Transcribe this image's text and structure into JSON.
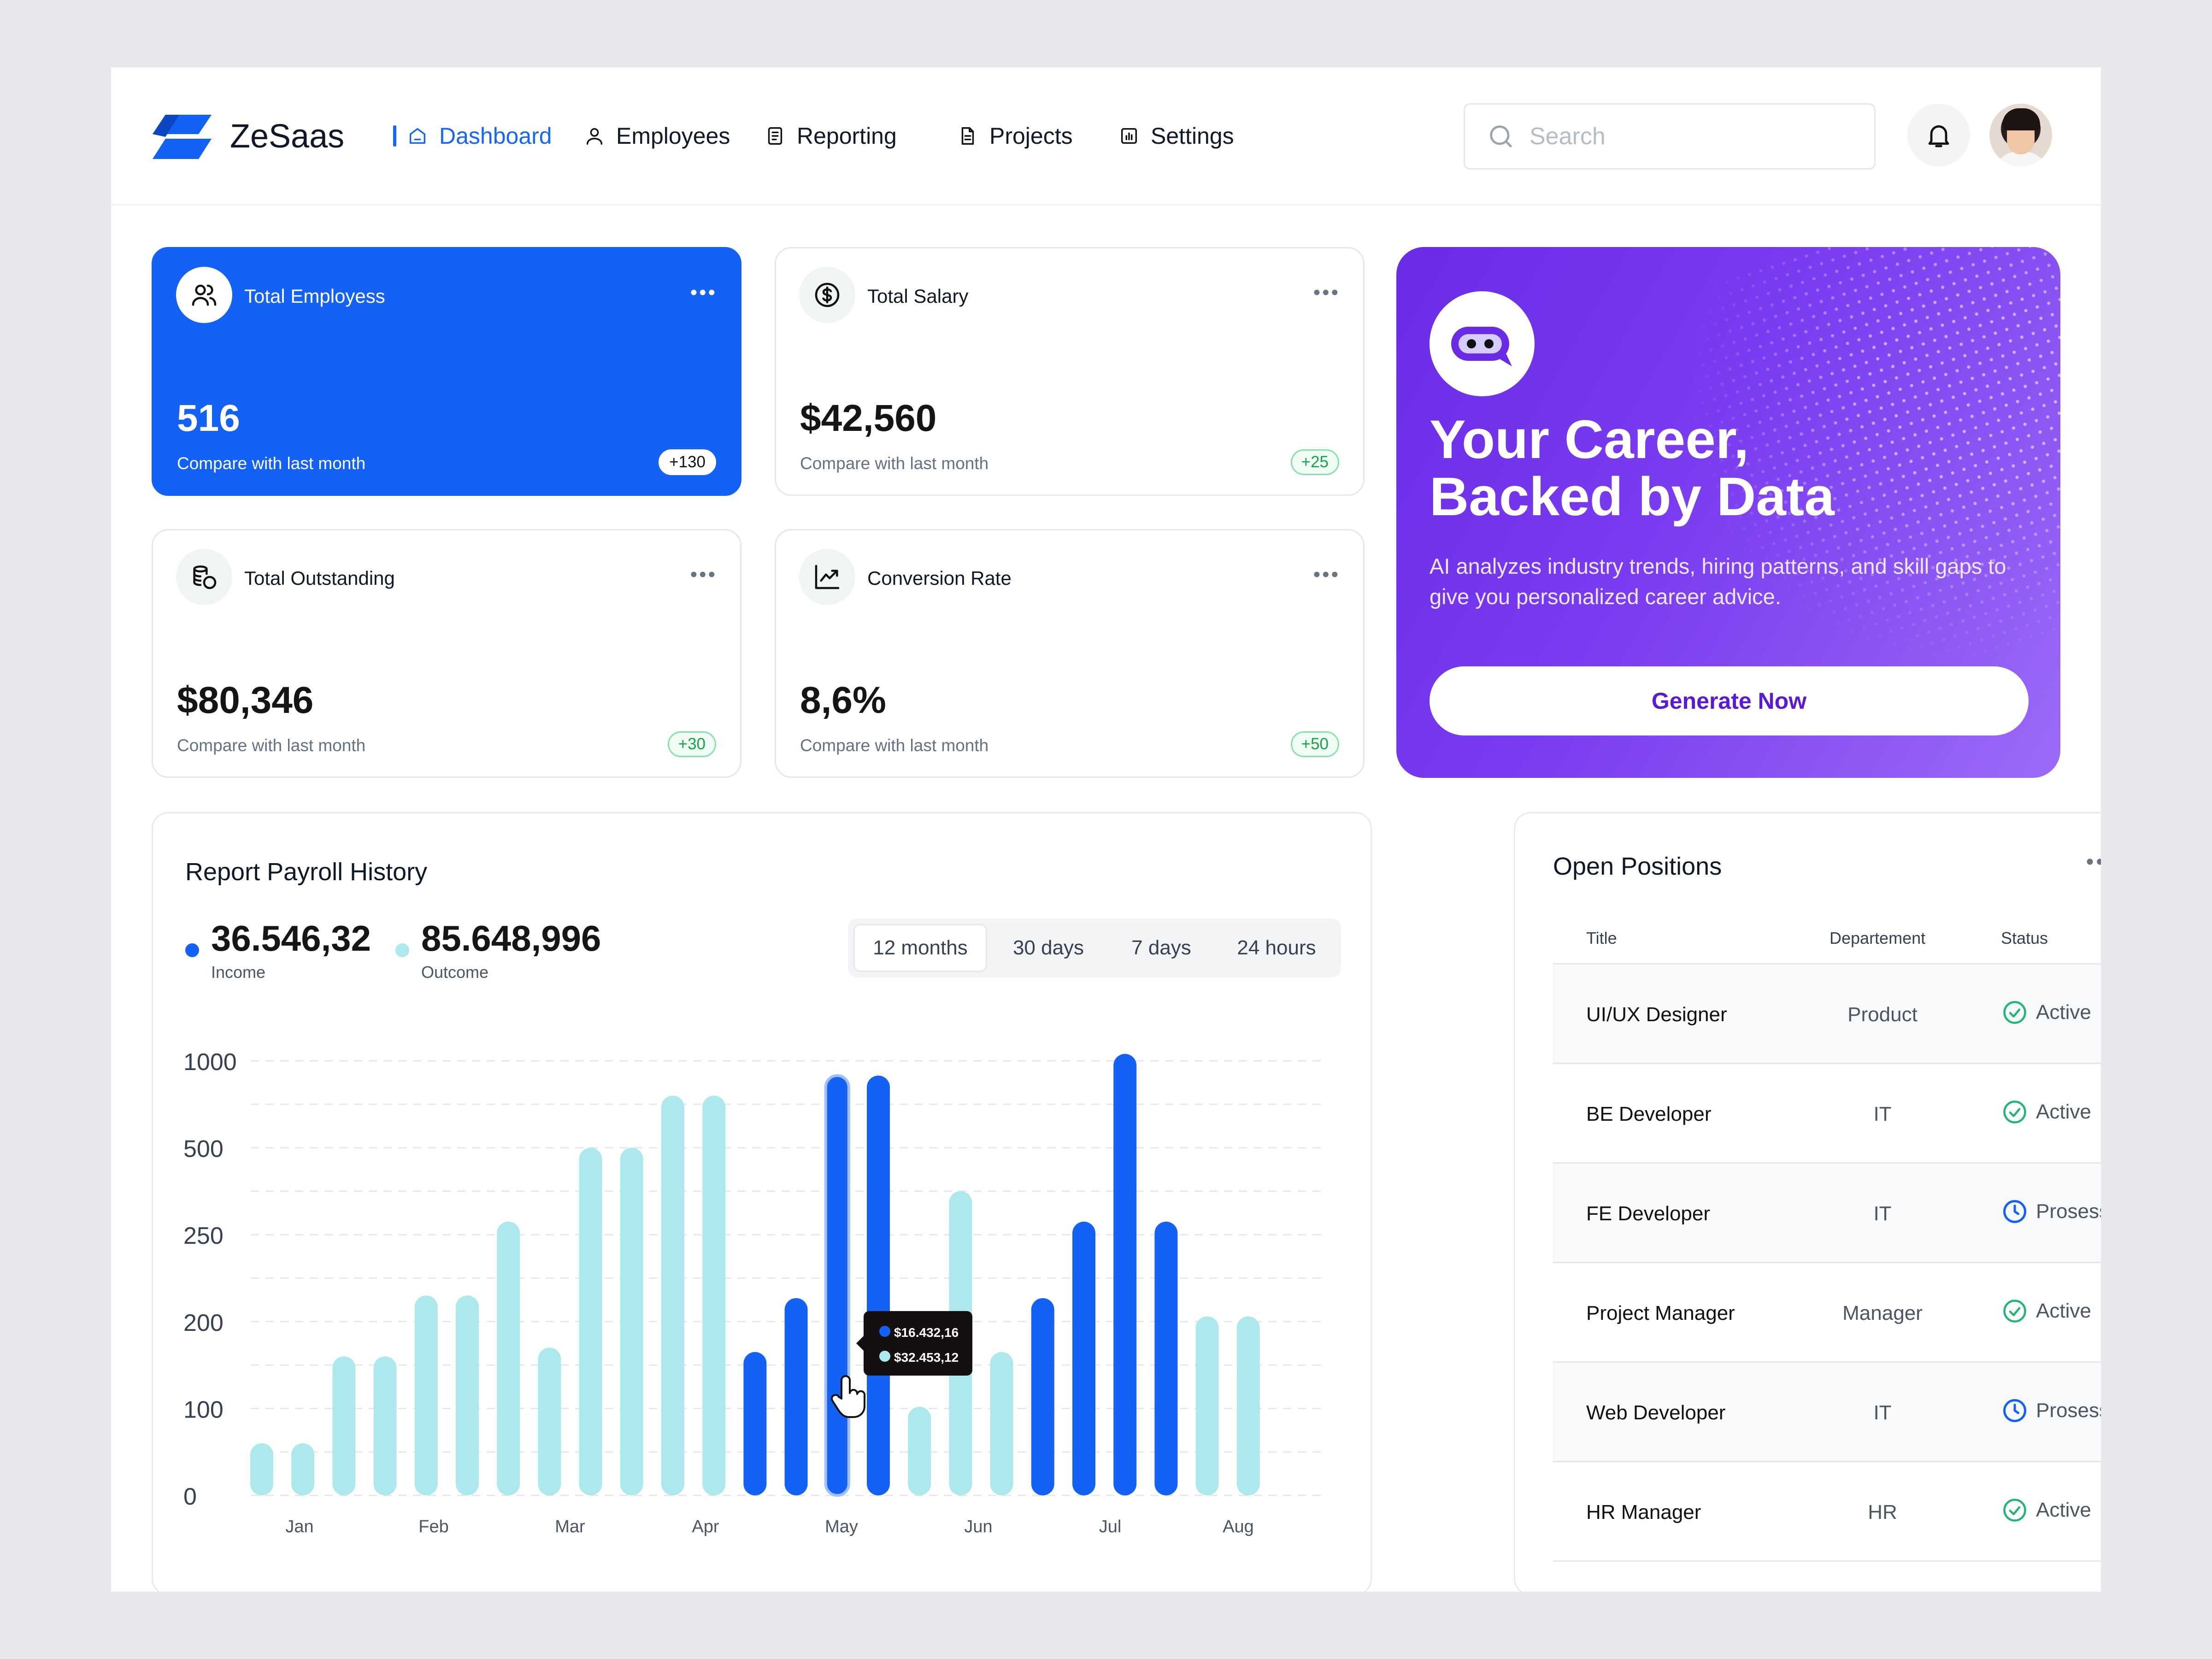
{
  "app": {
    "name": "ZeSaas",
    "brand_color": "#1766f5"
  },
  "nav": {
    "items": [
      {
        "label": "Dashboard",
        "icon": "home-icon",
        "active": true
      },
      {
        "label": "Employees",
        "icon": "user-icon"
      },
      {
        "label": "Reporting",
        "icon": "document-icon"
      },
      {
        "label": "Projects",
        "icon": "file-icon"
      },
      {
        "label": "Settings",
        "icon": "bar-chart-icon"
      }
    ]
  },
  "search": {
    "placeholder": "Search"
  },
  "stats": [
    {
      "title": "Total Employess",
      "value": "516",
      "compare": "Compare with last month",
      "badge": "+130",
      "icon": "users-icon"
    },
    {
      "title": "Total Salary",
      "value": "$42,560",
      "compare": "Compare with last month",
      "badge": "+25",
      "icon": "dollar-icon"
    },
    {
      "title": "Total Outstanding",
      "value": "$80,346",
      "compare": "Compare with last month",
      "badge": "+30",
      "icon": "coins-icon"
    },
    {
      "title": "Conversion Rate",
      "value": "8,6%",
      "compare": "Compare with last month",
      "badge": "+50",
      "icon": "trend-icon"
    }
  ],
  "promo": {
    "headline_line1": "Your Career,",
    "headline_line2": "Backed by Data",
    "description": "AI analyzes industry trends, hiring patterns, and skill gaps to give you personalized career advice.",
    "button": "Generate Now"
  },
  "payroll": {
    "title": "Report Payroll History",
    "income_value": "36.546,32",
    "income_label": "Income",
    "outcome_value": "85.648,996",
    "outcome_label": "Outcome",
    "tabs": [
      "12 months",
      "30 days",
      "7 days",
      "24 hours"
    ],
    "selected_tab": "12 months",
    "tooltip": {
      "income": "$16.432,16",
      "outcome": "$32.453,12"
    }
  },
  "chart_data": {
    "type": "bar",
    "y_tick_labels": [
      "0",
      "100",
      "200",
      "250",
      "500",
      "1000"
    ],
    "x_tick_labels": [
      "Jan",
      "Feb",
      "Mar",
      "Apr",
      "May",
      "Jun",
      "Jul",
      "Aug"
    ],
    "scale_note": "non-linear axis; bar values given as axis tick-level positions 0-5",
    "bars": [
      {
        "level": 0.6,
        "series": "Outcome"
      },
      {
        "level": 0.6,
        "series": "Outcome"
      },
      {
        "level": 1.6,
        "series": "Outcome"
      },
      {
        "level": 1.6,
        "series": "Outcome"
      },
      {
        "level": 2.3,
        "series": "Outcome"
      },
      {
        "level": 2.3,
        "series": "Outcome"
      },
      {
        "level": 3.15,
        "series": "Outcome"
      },
      {
        "level": 1.7,
        "series": "Outcome"
      },
      {
        "level": 4.0,
        "series": "Outcome"
      },
      {
        "level": 4.0,
        "series": "Outcome"
      },
      {
        "level": 4.6,
        "series": "Outcome"
      },
      {
        "level": 4.6,
        "series": "Outcome"
      },
      {
        "level": 1.65,
        "series": "Income"
      },
      {
        "level": 2.27,
        "series": "Income"
      },
      {
        "level": 4.83,
        "series": "Income",
        "highlight": true
      },
      {
        "level": 4.83,
        "series": "Income"
      },
      {
        "level": 1.02,
        "series": "Outcome"
      },
      {
        "level": 3.5,
        "series": "Outcome"
      },
      {
        "level": 1.65,
        "series": "Outcome"
      },
      {
        "level": 2.27,
        "series": "Income"
      },
      {
        "level": 3.15,
        "series": "Income"
      },
      {
        "level": 5.08,
        "series": "Income"
      },
      {
        "level": 3.15,
        "series": "Income"
      },
      {
        "level": 2.06,
        "series": "Outcome"
      },
      {
        "level": 2.06,
        "series": "Outcome"
      }
    ],
    "series": [
      {
        "name": "Income",
        "color": "#1461f6"
      },
      {
        "name": "Outcome",
        "color": "#ade8ec"
      }
    ]
  },
  "positions": {
    "title": "Open Positions",
    "columns": [
      "Title",
      "Departement",
      "Status"
    ],
    "rows": [
      {
        "title": "UI/UX Designer",
        "dept": "Product",
        "status": "Active"
      },
      {
        "title": "BE Developer",
        "dept": "IT",
        "status": "Active"
      },
      {
        "title": "FE Developer",
        "dept": "IT",
        "status": "Prosess"
      },
      {
        "title": "Project Manager",
        "dept": "Manager",
        "status": "Active"
      },
      {
        "title": "Web Developer",
        "dept": "IT",
        "status": "Prosess"
      },
      {
        "title": "HR Manager",
        "dept": "HR",
        "status": "Active"
      }
    ]
  }
}
